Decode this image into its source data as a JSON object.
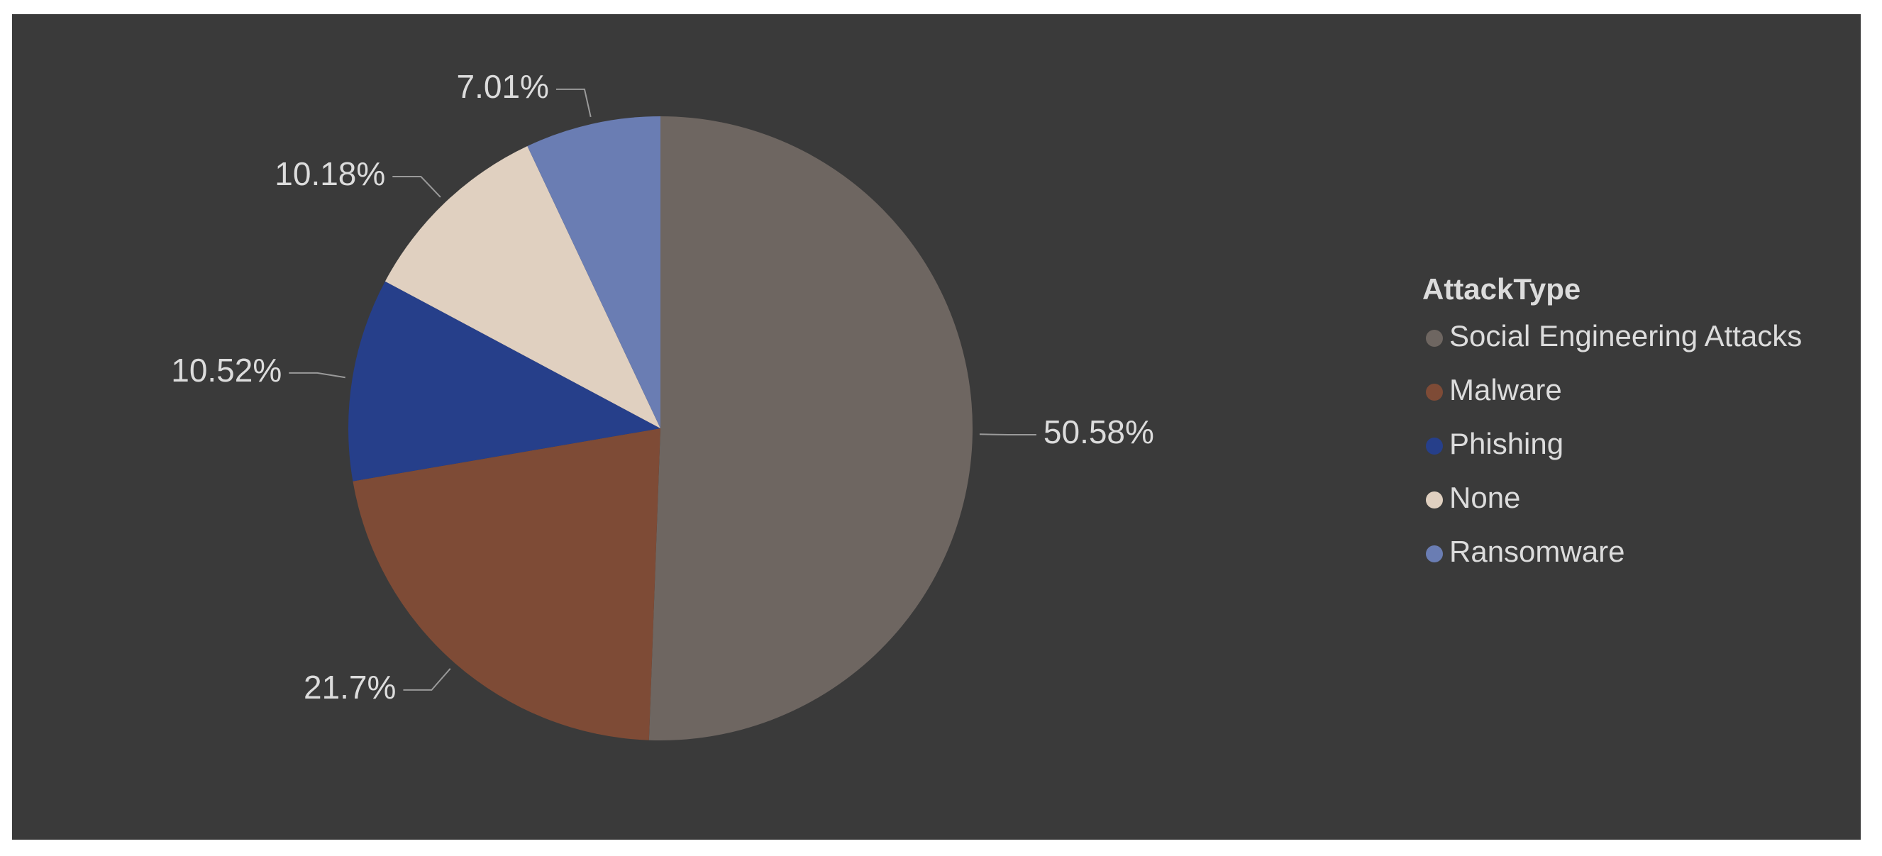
{
  "chart_data": {
    "type": "pie",
    "legend_title": "AttackType",
    "categories": [
      "Social Engineering Attacks",
      "Malware",
      "Phishing",
      "None",
      "Ransomware"
    ],
    "values": [
      50.58,
      21.7,
      10.52,
      10.18,
      7.01
    ],
    "value_labels": [
      "50.58%",
      "21.7%",
      "10.52%",
      "10.18%",
      "7.01%"
    ],
    "colors": [
      "#6e6661",
      "#7e4b36",
      "#263f8a",
      "#e0d0c0",
      "#6a7db3"
    ],
    "legend": "right"
  }
}
